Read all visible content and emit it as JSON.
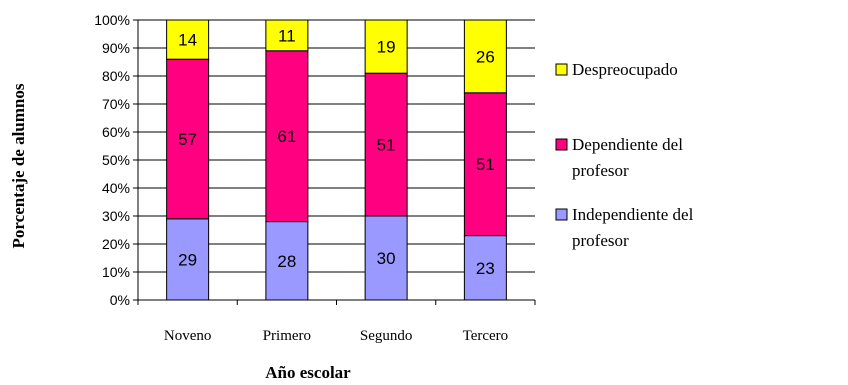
{
  "chart_data": {
    "type": "bar",
    "stacked": true,
    "percent": true,
    "categories": [
      "Noveno",
      "Primero",
      "Segundo",
      "Tercero"
    ],
    "series": [
      {
        "name": "Independiente del profesor",
        "values": [
          29,
          28,
          30,
          23
        ],
        "color": "#9999ff"
      },
      {
        "name": "Dependiente del profesor",
        "values": [
          57,
          61,
          51,
          51
        ],
        "color": "#ff0080"
      },
      {
        "name": "Despreocupado",
        "values": [
          14,
          11,
          19,
          26
        ],
        "color": "#ffff00"
      }
    ],
    "legend_order": [
      2,
      1,
      0
    ],
    "legend_lines": [
      [
        "Despreocupado"
      ],
      [
        "Dependiente del",
        "profesor"
      ],
      [
        "Independiente del",
        "profesor"
      ]
    ],
    "yticks": [
      "0%",
      "10%",
      "20%",
      "30%",
      "40%",
      "50%",
      "60%",
      "70%",
      "80%",
      "90%",
      "100%"
    ],
    "ylim": [
      0,
      100
    ],
    "xlabel": "Año escolar",
    "ylabel": "Porcentaje de alumnos",
    "grid": true,
    "legend_position": "right"
  }
}
